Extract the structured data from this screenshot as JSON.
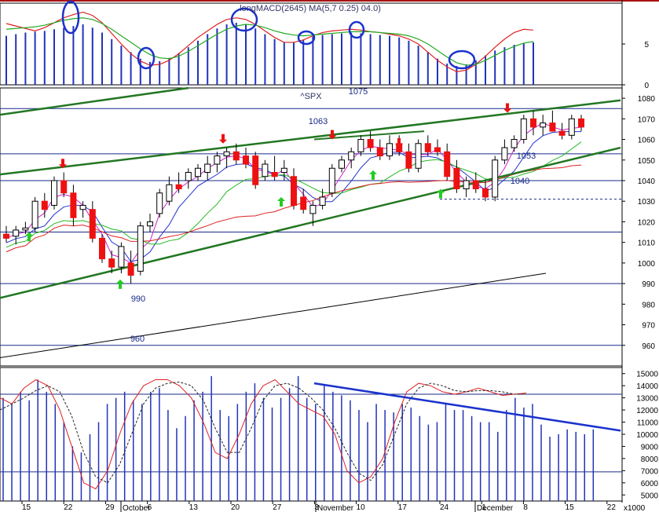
{
  "chart_data": [
    {
      "id": "top_oscillator",
      "type": "line",
      "title": "longMACD(2645) MA(5,7 0.25) 04.0)",
      "ylim": [
        0,
        10
      ],
      "yticks": [
        0,
        5
      ],
      "series": [
        {
          "color": "#dd2222",
          "values": [
            7.5,
            7.2,
            6.9,
            6.6,
            7.0,
            7.6,
            8.2,
            8.6,
            8.9,
            8.5,
            7.6,
            6.3,
            5.0,
            3.8,
            2.9,
            2.4,
            2.5,
            3.0,
            3.8,
            4.8,
            5.8,
            6.6,
            7.4,
            8.0,
            8.2,
            8.0,
            7.4,
            6.6,
            5.8,
            5.2,
            5.2,
            5.5,
            6.0,
            6.4,
            6.6,
            6.7,
            6.8,
            6.7,
            6.5,
            6.4,
            6.2,
            6.0,
            5.6,
            5.0,
            4.0,
            3.0,
            2.2,
            1.6,
            1.8,
            2.5,
            3.5,
            4.6,
            5.6,
            6.4,
            6.8,
            6.7
          ]
        },
        {
          "color": "#22aa22",
          "values": [
            6.8,
            6.9,
            7.0,
            7.1,
            7.3,
            7.6,
            7.9,
            8.1,
            8.2,
            8.0,
            7.5,
            6.8,
            6.0,
            5.2,
            4.4,
            3.7,
            3.3,
            3.2,
            3.5,
            4.1,
            4.8,
            5.5,
            6.2,
            6.8,
            7.2,
            7.4,
            7.3,
            7.0,
            6.6,
            6.3,
            6.1,
            6.0,
            6.1,
            6.2,
            6.3,
            6.4,
            6.5,
            6.5,
            6.5,
            6.4,
            6.3,
            6.2,
            6.0,
            5.6,
            5.0,
            4.2,
            3.4,
            2.7,
            2.4,
            2.5,
            3.0,
            3.6,
            4.2,
            4.7,
            5.1,
            5.3
          ]
        }
      ],
      "bars": [
        6.0,
        6.2,
        6.4,
        6.5,
        6.6,
        6.8,
        7.0,
        7.2,
        7.4,
        7.0,
        6.4,
        5.6,
        4.8,
        4.0,
        3.2,
        2.8,
        2.9,
        3.3,
        3.9,
        4.6,
        5.4,
        6.2,
        6.9,
        7.4,
        7.6,
        7.4,
        6.9,
        6.2,
        5.6,
        5.2,
        5.2,
        5.5,
        5.9,
        6.1,
        6.2,
        6.3,
        6.4,
        6.3,
        6.2,
        6.1,
        6.0,
        5.8,
        5.4,
        4.8,
        4.0,
        3.2,
        2.6,
        2.3,
        2.5,
        3.0,
        3.6,
        4.2,
        4.6,
        4.9,
        5.1,
        5.2
      ]
    },
    {
      "id": "price_panel",
      "type": "candlestick",
      "title": "^SPX",
      "ylim": [
        950,
        1085
      ],
      "yticks": [
        960,
        970,
        980,
        990,
        1000,
        1010,
        1020,
        1030,
        1040,
        1050,
        1060,
        1070,
        1080
      ],
      "annotations": [
        "1075",
        "1063",
        "1053",
        "1040",
        "990",
        "960"
      ],
      "ohlc": [
        [
          1014,
          1018,
          1010,
          1012
        ],
        [
          1013,
          1018,
          1009,
          1016
        ],
        [
          1016,
          1020,
          1014,
          1017
        ],
        [
          1017,
          1032,
          1015,
          1030
        ],
        [
          1030,
          1034,
          1022,
          1026
        ],
        [
          1028,
          1042,
          1026,
          1040
        ],
        [
          1040,
          1044,
          1032,
          1034
        ],
        [
          1034,
          1038,
          1018,
          1022
        ],
        [
          1026,
          1030,
          1022,
          1028
        ],
        [
          1026,
          1030,
          1010,
          1012
        ],
        [
          1012,
          1014,
          1000,
          1002
        ],
        [
          1002,
          1006,
          995,
          998
        ],
        [
          998,
          1010,
          995,
          1008
        ],
        [
          1000,
          1006,
          990,
          994
        ],
        [
          996,
          1020,
          994,
          1018
        ],
        [
          1018,
          1024,
          1015,
          1020
        ],
        [
          1024,
          1036,
          1022,
          1034
        ],
        [
          1030,
          1042,
          1028,
          1038
        ],
        [
          1038,
          1044,
          1034,
          1036
        ],
        [
          1040,
          1046,
          1036,
          1044
        ],
        [
          1042,
          1048,
          1040,
          1046
        ],
        [
          1044,
          1052,
          1040,
          1048
        ],
        [
          1048,
          1054,
          1044,
          1052
        ],
        [
          1052,
          1056,
          1046,
          1054
        ],
        [
          1054,
          1058,
          1048,
          1050
        ],
        [
          1052,
          1056,
          1046,
          1048
        ],
        [
          1052,
          1054,
          1036,
          1038
        ],
        [
          1042,
          1050,
          1040,
          1048
        ],
        [
          1044,
          1052,
          1040,
          1042
        ],
        [
          1044,
          1050,
          1040,
          1046
        ],
        [
          1042,
          1046,
          1026,
          1028
        ],
        [
          1032,
          1036,
          1024,
          1026
        ],
        [
          1024,
          1030,
          1018,
          1028
        ],
        [
          1028,
          1036,
          1026,
          1032
        ],
        [
          1034,
          1048,
          1032,
          1046
        ],
        [
          1046,
          1052,
          1044,
          1050
        ],
        [
          1050,
          1056,
          1046,
          1054
        ],
        [
          1054,
          1062,
          1052,
          1060
        ],
        [
          1060,
          1064,
          1054,
          1056
        ],
        [
          1056,
          1060,
          1050,
          1052
        ],
        [
          1052,
          1062,
          1050,
          1058
        ],
        [
          1058,
          1062,
          1052,
          1054
        ],
        [
          1054,
          1058,
          1044,
          1046
        ],
        [
          1046,
          1060,
          1044,
          1058
        ],
        [
          1058,
          1062,
          1052,
          1054
        ],
        [
          1056,
          1060,
          1052,
          1054
        ],
        [
          1054,
          1058,
          1040,
          1042
        ],
        [
          1046,
          1050,
          1034,
          1036
        ],
        [
          1036,
          1042,
          1032,
          1040
        ],
        [
          1040,
          1044,
          1034,
          1036
        ],
        [
          1036,
          1040,
          1030,
          1032
        ],
        [
          1032,
          1052,
          1030,
          1050
        ],
        [
          1050,
          1060,
          1048,
          1056
        ],
        [
          1056,
          1062,
          1054,
          1060
        ],
        [
          1060,
          1072,
          1058,
          1070
        ],
        [
          1070,
          1074,
          1062,
          1066
        ],
        [
          1066,
          1072,
          1062,
          1068
        ],
        [
          1068,
          1074,
          1064,
          1064
        ],
        [
          1064,
          1068,
          1060,
          1062
        ],
        [
          1062,
          1072,
          1060,
          1070
        ],
        [
          1070,
          1072,
          1064,
          1066
        ]
      ]
    },
    {
      "id": "bottom_oscillator",
      "type": "line",
      "ylim": [
        4500,
        15500
      ],
      "yticks": [
        5000,
        6000,
        7000,
        8000,
        9000,
        10000,
        11000,
        12000,
        13000,
        14000,
        15000
      ],
      "xticks": [
        {
          "label": "15",
          "i": 2
        },
        {
          "label": "22",
          "i": 7
        },
        {
          "label": "29",
          "i": 12
        },
        {
          "label": "6",
          "i": 17
        },
        {
          "label": "13",
          "i": 22
        },
        {
          "label": "20",
          "i": 27
        },
        {
          "label": "27",
          "i": 32
        },
        {
          "label": "3",
          "i": 37
        },
        {
          "label": "10",
          "i": 42
        },
        {
          "label": "17",
          "i": 47
        },
        {
          "label": "24",
          "i": 52
        },
        {
          "label": "1",
          "i": 57
        },
        {
          "label": "8",
          "i": 62
        },
        {
          "label": "15",
          "i": 67
        },
        {
          "label": "22",
          "i": 72
        }
      ],
      "months": [
        {
          "label": "October",
          "i": 15
        },
        {
          "label": "November",
          "i": 37
        },
        {
          "label": "December",
          "i": 57
        }
      ],
      "axis_note": "x1000",
      "series": [
        {
          "color": "#dd2222",
          "values": [
            13000,
            12500,
            13800,
            14500,
            14000,
            12000,
            9000,
            6000,
            5500,
            7000,
            10000,
            12500,
            14000,
            14500,
            14500,
            14000,
            13000,
            11000,
            8500,
            8000,
            10000,
            12500,
            14000,
            14500,
            13500,
            12500,
            12000,
            11500,
            10000,
            7000,
            6000,
            6500,
            8000,
            11000,
            13500,
            14200,
            14000,
            13500,
            13300,
            13500,
            13800,
            13500,
            13200,
            13300,
            13400
          ]
        },
        {
          "color": "#222222",
          "values": [
            12000,
            12500,
            13000,
            13600,
            14000,
            13500,
            11500,
            8500,
            6500,
            6000,
            7500,
            10000,
            12500,
            13800,
            14200,
            14300,
            14000,
            12800,
            10500,
            8500,
            8500,
            10500,
            12800,
            14000,
            14200,
            13800,
            13000,
            12000,
            10500,
            8500,
            6800,
            6200,
            7500,
            10000,
            12500,
            13800,
            14200,
            14000,
            13600,
            13500,
            13600,
            13600,
            13500,
            13300,
            13300
          ]
        }
      ],
      "bars": [
        13000,
        12500,
        13500,
        12800,
        14500,
        13500,
        12500,
        11000,
        9000,
        8500,
        10000,
        11000,
        12500,
        13000,
        13500,
        12800,
        12500,
        13500,
        13800,
        12000,
        10500,
        11500,
        12800,
        13500,
        14800,
        12000,
        11500,
        12500,
        13500,
        14200,
        13000,
        12200,
        13000,
        13800,
        14800,
        13000,
        12500,
        14000,
        13500,
        13200,
        12800,
        12000,
        11000,
        12500,
        12000,
        11800,
        12500,
        12200,
        11500,
        10800,
        11000,
        12500,
        12000,
        12000,
        11500,
        11000,
        11000,
        10200,
        12000,
        13000,
        12200,
        12500,
        10800,
        9800,
        10000,
        10400,
        10200,
        10000,
        10400
      ]
    }
  ]
}
